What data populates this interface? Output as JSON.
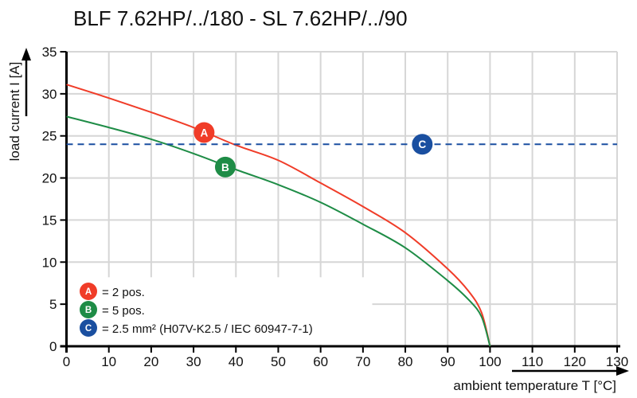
{
  "chart_data": {
    "type": "line",
    "title": "BLF 7.62HP/../180 - SL 7.62HP/../90",
    "xlabel": "ambient temperature T [°C]",
    "ylabel": "load current I [A]",
    "xlim": [
      0,
      130
    ],
    "ylim": [
      0,
      35
    ],
    "xticks": [
      0,
      10,
      20,
      30,
      40,
      50,
      60,
      70,
      80,
      90,
      100,
      110,
      120,
      130
    ],
    "yticks": [
      0,
      5,
      10,
      15,
      20,
      25,
      30,
      35
    ],
    "grid": true,
    "series": [
      {
        "marker": "A",
        "name": "= 2 pos.",
        "color": "#f03c28",
        "style": "solid",
        "x": [
          0,
          10,
          20,
          30,
          40,
          50,
          60,
          70,
          80,
          90,
          95,
          98,
          100
        ],
        "y": [
          31.1,
          29.5,
          27.8,
          26.0,
          23.9,
          22.1,
          19.4,
          16.6,
          13.5,
          9.2,
          6.5,
          4.0,
          0
        ]
      },
      {
        "marker": "B",
        "name": "= 5 pos.",
        "color": "#1e8c46",
        "style": "solid",
        "x": [
          0,
          10,
          20,
          30,
          40,
          50,
          60,
          70,
          80,
          90,
          95,
          98,
          100
        ],
        "y": [
          27.3,
          26.0,
          24.6,
          22.9,
          21.0,
          19.2,
          17.1,
          14.5,
          11.7,
          7.8,
          5.5,
          3.5,
          0
        ]
      },
      {
        "marker": "C",
        "name": "= 2.5 mm² (H07V-K2.5 / IEC 60947-7-1)",
        "color": "#1a4fa0",
        "style": "dashed",
        "x": [
          0,
          130
        ],
        "y": [
          24,
          24
        ]
      }
    ],
    "marker_positions": {
      "A": [
        32.5,
        25.4
      ],
      "B": [
        37.5,
        21.3
      ],
      "C": [
        84,
        24
      ]
    },
    "legend_position": "bottom-left"
  }
}
